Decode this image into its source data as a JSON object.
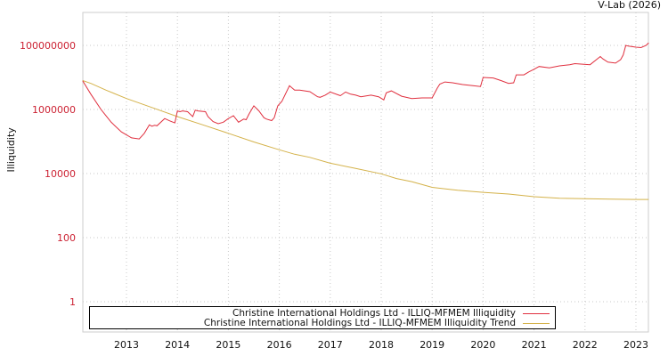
{
  "credit": "V-Lab (2026)",
  "legend": {
    "items": [
      {
        "label": "Christine International Holdings Ltd - ILLIQ-MFMEM Illiquidity",
        "color": "#e0303f"
      },
      {
        "label": "Christine International Holdings Ltd - ILLIQ-MFMEM Illiquidity Trend",
        "color": "#d4b24a"
      }
    ]
  },
  "colors": {
    "series": "#e0303f",
    "trend": "#d4b24a",
    "yticks": "#cc2233",
    "grid": "#c8c8c8",
    "frame": "#cccccc"
  },
  "chart_data": {
    "type": "line",
    "title": "",
    "xlabel": "",
    "ylabel": "Illiquidity",
    "yscale": "log",
    "ylim": [
      0.3,
      3000000000
    ],
    "xlim": [
      2012.14,
      2023.25
    ],
    "yticks": [
      1,
      100,
      10000,
      1000000,
      100000000
    ],
    "ytick_labels": [
      "1",
      "100",
      "10000",
      "1000000",
      "100000000"
    ],
    "xticks": [
      2013,
      2014,
      2015,
      2016,
      2017,
      2018,
      2019,
      2020,
      2021,
      2022,
      2023
    ],
    "xtick_labels": [
      "2013",
      "2014",
      "2015",
      "2016",
      "2017",
      "2018",
      "2019",
      "2020",
      "2021",
      "2022",
      "2023"
    ],
    "grid": true,
    "legend_position": "bottom",
    "series": [
      {
        "name": "Christine International Holdings Ltd - ILLIQ-MFMEM Illiquidity",
        "x": [
          2012.14,
          2012.3,
          2012.5,
          2012.7,
          2012.9,
          2013.1,
          2013.25,
          2013.35,
          2013.45,
          2013.5,
          2013.55,
          2013.6,
          2013.75,
          2013.85,
          2013.95,
          2014.0,
          2014.05,
          2014.1,
          2014.2,
          2014.3,
          2014.35,
          2014.4,
          2014.55,
          2014.6,
          2014.7,
          2014.8,
          2014.9,
          2015.0,
          2015.1,
          2015.2,
          2015.3,
          2015.35,
          2015.4,
          2015.5,
          2015.6,
          2015.7,
          2015.75,
          2015.85,
          2015.9,
          2015.97,
          2016.05,
          2016.2,
          2016.3,
          2016.4,
          2016.6,
          2016.75,
          2016.8,
          2016.9,
          2017.0,
          2017.2,
          2017.3,
          2017.4,
          2017.5,
          2017.6,
          2017.8,
          2017.95,
          2018.05,
          2018.1,
          2018.2,
          2018.4,
          2018.6,
          2018.8,
          2019.0,
          2019.1,
          2019.15,
          2019.25,
          2019.4,
          2019.6,
          2019.8,
          2019.95,
          2020.0,
          2020.2,
          2020.35,
          2020.5,
          2020.6,
          2020.65,
          2020.8,
          2020.9,
          2021.0,
          2021.1,
          2021.3,
          2021.5,
          2021.7,
          2021.8,
          2021.95,
          2022.1,
          2022.3,
          2022.35,
          2022.45,
          2022.6,
          2022.7,
          2022.75,
          2022.8,
          2022.85,
          2023.0,
          2023.1,
          2023.2,
          2023.25
        ],
        "values": [
          7900000,
          3000000,
          1000000,
          400000,
          200000,
          130000,
          120000,
          180000,
          330000,
          300000,
          320000,
          310000,
          520000,
          440000,
          380000,
          900000,
          850000,
          900000,
          850000,
          600000,
          950000,
          900000,
          850000,
          600000,
          420000,
          360000,
          400000,
          520000,
          640000,
          400000,
          500000,
          480000,
          700000,
          1300000,
          900000,
          550000,
          500000,
          450000,
          550000,
          1300000,
          1800000,
          5500000,
          4000000,
          4000000,
          3600000,
          2500000,
          2400000,
          2800000,
          3500000,
          2700000,
          3500000,
          3000000,
          2800000,
          2500000,
          2800000,
          2500000,
          2000000,
          3300000,
          3800000,
          2600000,
          2200000,
          2300000,
          2300000,
          4600000,
          6200000,
          7200000,
          6800000,
          6000000,
          5500000,
          5200000,
          10000000,
          9600000,
          8000000,
          6500000,
          6800000,
          12000000,
          12000000,
          15000000,
          18000000,
          22000000,
          20000000,
          23000000,
          25000000,
          27000000,
          26000000,
          25000000,
          45000000,
          38000000,
          30000000,
          28000000,
          36000000,
          50000000,
          100000000,
          95000000,
          88000000,
          85000000,
          100000000,
          120000000
        ]
      },
      {
        "name": "Christine International Holdings Ltd - ILLIQ-MFMEM Illiquidity Trend",
        "x": [
          2012.14,
          2012.3,
          2012.6,
          2013.0,
          2013.5,
          2014.0,
          2014.5,
          2015.0,
          2015.5,
          2016.0,
          2016.3,
          2016.6,
          2017.0,
          2017.5,
          2018.0,
          2018.3,
          2018.6,
          2019.0,
          2019.5,
          2020.0,
          2020.5,
          2021.0,
          2021.5,
          2022.0,
          2022.5,
          2023.0,
          2023.25
        ],
        "values": [
          8000000,
          6500000,
          4000000,
          2200000,
          1150000,
          600000,
          330000,
          180000,
          97000,
          55000,
          40000,
          32000,
          21000,
          14500,
          9800,
          7000,
          5600,
          3700,
          3000,
          2600,
          2300,
          1900,
          1700,
          1650,
          1600,
          1550,
          1550
        ]
      }
    ]
  }
}
